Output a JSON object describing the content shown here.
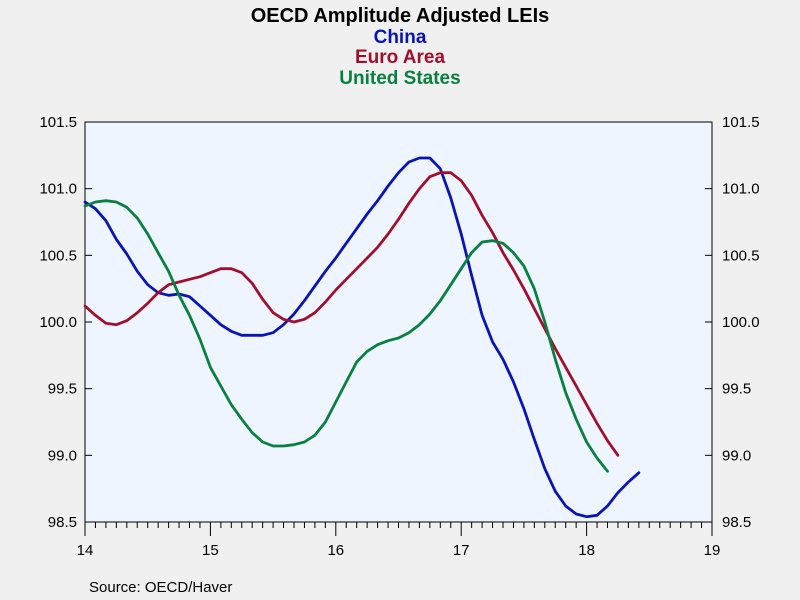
{
  "chart_data": {
    "type": "line",
    "title": "OECD Amplitude Adjusted LEIs",
    "xlabel": "",
    "ylabel": "",
    "ylim": [
      98.5,
      101.5
    ],
    "xlim": [
      2014,
      2019
    ],
    "yticks": [
      98.5,
      99.0,
      99.5,
      100.0,
      100.5,
      101.0,
      101.5
    ],
    "ytick_labels": [
      "98.5",
      "99.0",
      "99.5",
      "100.0",
      "100.5",
      "101.0",
      "101.5"
    ],
    "xticks": [
      2014,
      2015,
      2016,
      2017,
      2018,
      2019
    ],
    "xtick_labels": [
      "14",
      "15",
      "16",
      "17",
      "18",
      "19"
    ],
    "grid": false,
    "source": "Source:  OECD/Haver",
    "plot_background": "#eef5ff",
    "page_background": "#f0f0f0",
    "series": [
      {
        "name": "China",
        "color": "#0a14b4",
        "points": [
          [
            2014.0,
            100.9
          ],
          [
            2014.083,
            100.85
          ],
          [
            2014.167,
            100.76
          ],
          [
            2014.25,
            100.62
          ],
          [
            2014.333,
            100.51
          ],
          [
            2014.417,
            100.38
          ],
          [
            2014.5,
            100.28
          ],
          [
            2014.583,
            100.22
          ],
          [
            2014.667,
            100.2
          ],
          [
            2014.75,
            100.21
          ],
          [
            2014.833,
            100.19
          ],
          [
            2014.917,
            100.12
          ],
          [
            2015.0,
            100.05
          ],
          [
            2015.083,
            99.98
          ],
          [
            2015.167,
            99.93
          ],
          [
            2015.25,
            99.9
          ],
          [
            2015.333,
            99.9
          ],
          [
            2015.417,
            99.9
          ],
          [
            2015.5,
            99.92
          ],
          [
            2015.583,
            99.98
          ],
          [
            2015.667,
            100.06
          ],
          [
            2015.75,
            100.16
          ],
          [
            2015.833,
            100.27
          ],
          [
            2015.917,
            100.38
          ],
          [
            2016.0,
            100.48
          ],
          [
            2016.083,
            100.59
          ],
          [
            2016.167,
            100.7
          ],
          [
            2016.25,
            100.81
          ],
          [
            2016.333,
            100.91
          ],
          [
            2016.417,
            101.02
          ],
          [
            2016.5,
            101.12
          ],
          [
            2016.583,
            101.2
          ],
          [
            2016.667,
            101.23
          ],
          [
            2016.75,
            101.23
          ],
          [
            2016.833,
            101.15
          ],
          [
            2016.917,
            100.93
          ],
          [
            2017.0,
            100.66
          ],
          [
            2017.083,
            100.35
          ],
          [
            2017.167,
            100.05
          ],
          [
            2017.25,
            99.85
          ],
          [
            2017.333,
            99.72
          ],
          [
            2017.417,
            99.55
          ],
          [
            2017.5,
            99.35
          ],
          [
            2017.583,
            99.12
          ],
          [
            2017.667,
            98.9
          ],
          [
            2017.75,
            98.73
          ],
          [
            2017.833,
            98.62
          ],
          [
            2017.917,
            98.56
          ],
          [
            2018.0,
            98.54
          ],
          [
            2018.083,
            98.55
          ],
          [
            2018.167,
            98.62
          ],
          [
            2018.25,
            98.72
          ],
          [
            2018.333,
            98.8
          ],
          [
            2018.417,
            98.87
          ]
        ]
      },
      {
        "name": "Euro Area",
        "color": "#a0102c",
        "points": [
          [
            2014.0,
            100.12
          ],
          [
            2014.083,
            100.05
          ],
          [
            2014.167,
            99.99
          ],
          [
            2014.25,
            99.98
          ],
          [
            2014.333,
            100.01
          ],
          [
            2014.417,
            100.07
          ],
          [
            2014.5,
            100.14
          ],
          [
            2014.583,
            100.22
          ],
          [
            2014.667,
            100.28
          ],
          [
            2014.75,
            100.3
          ],
          [
            2014.833,
            100.32
          ],
          [
            2014.917,
            100.34
          ],
          [
            2015.0,
            100.37
          ],
          [
            2015.083,
            100.4
          ],
          [
            2015.167,
            100.4
          ],
          [
            2015.25,
            100.37
          ],
          [
            2015.333,
            100.29
          ],
          [
            2015.417,
            100.17
          ],
          [
            2015.5,
            100.07
          ],
          [
            2015.583,
            100.02
          ],
          [
            2015.667,
            100.0
          ],
          [
            2015.75,
            100.02
          ],
          [
            2015.833,
            100.07
          ],
          [
            2015.917,
            100.15
          ],
          [
            2016.0,
            100.24
          ],
          [
            2016.083,
            100.32
          ],
          [
            2016.167,
            100.4
          ],
          [
            2016.25,
            100.48
          ],
          [
            2016.333,
            100.56
          ],
          [
            2016.417,
            100.66
          ],
          [
            2016.5,
            100.77
          ],
          [
            2016.583,
            100.89
          ],
          [
            2016.667,
            101.0
          ],
          [
            2016.75,
            101.09
          ],
          [
            2016.833,
            101.12
          ],
          [
            2016.917,
            101.12
          ],
          [
            2017.0,
            101.06
          ],
          [
            2017.083,
            100.95
          ],
          [
            2017.167,
            100.8
          ],
          [
            2017.25,
            100.67
          ],
          [
            2017.333,
            100.52
          ],
          [
            2017.417,
            100.39
          ],
          [
            2017.5,
            100.25
          ],
          [
            2017.583,
            100.1
          ],
          [
            2017.667,
            99.95
          ],
          [
            2017.75,
            99.8
          ],
          [
            2017.833,
            99.66
          ],
          [
            2017.917,
            99.52
          ],
          [
            2018.0,
            99.38
          ],
          [
            2018.083,
            99.24
          ],
          [
            2018.167,
            99.11
          ],
          [
            2018.25,
            99.0
          ]
        ]
      },
      {
        "name": "United States",
        "color": "#0a8040",
        "points": [
          [
            2014.0,
            100.87
          ],
          [
            2014.083,
            100.9
          ],
          [
            2014.167,
            100.91
          ],
          [
            2014.25,
            100.9
          ],
          [
            2014.333,
            100.86
          ],
          [
            2014.417,
            100.78
          ],
          [
            2014.5,
            100.66
          ],
          [
            2014.583,
            100.52
          ],
          [
            2014.667,
            100.38
          ],
          [
            2014.75,
            100.2
          ],
          [
            2014.833,
            100.05
          ],
          [
            2014.917,
            99.87
          ],
          [
            2015.0,
            99.66
          ],
          [
            2015.083,
            99.52
          ],
          [
            2015.167,
            99.38
          ],
          [
            2015.25,
            99.27
          ],
          [
            2015.333,
            99.17
          ],
          [
            2015.417,
            99.1
          ],
          [
            2015.5,
            99.07
          ],
          [
            2015.583,
            99.07
          ],
          [
            2015.667,
            99.08
          ],
          [
            2015.75,
            99.1
          ],
          [
            2015.833,
            99.15
          ],
          [
            2015.917,
            99.25
          ],
          [
            2016.0,
            99.4
          ],
          [
            2016.083,
            99.55
          ],
          [
            2016.167,
            99.7
          ],
          [
            2016.25,
            99.78
          ],
          [
            2016.333,
            99.83
          ],
          [
            2016.417,
            99.86
          ],
          [
            2016.5,
            99.88
          ],
          [
            2016.583,
            99.92
          ],
          [
            2016.667,
            99.98
          ],
          [
            2016.75,
            100.06
          ],
          [
            2016.833,
            100.16
          ],
          [
            2016.917,
            100.28
          ],
          [
            2017.0,
            100.4
          ],
          [
            2017.083,
            100.52
          ],
          [
            2017.167,
            100.6
          ],
          [
            2017.25,
            100.61
          ],
          [
            2017.333,
            100.59
          ],
          [
            2017.417,
            100.52
          ],
          [
            2017.5,
            100.42
          ],
          [
            2017.583,
            100.25
          ],
          [
            2017.667,
            100.0
          ],
          [
            2017.75,
            99.72
          ],
          [
            2017.833,
            99.47
          ],
          [
            2017.917,
            99.27
          ],
          [
            2018.0,
            99.1
          ],
          [
            2018.083,
            98.98
          ],
          [
            2018.167,
            98.88
          ]
        ]
      }
    ]
  }
}
